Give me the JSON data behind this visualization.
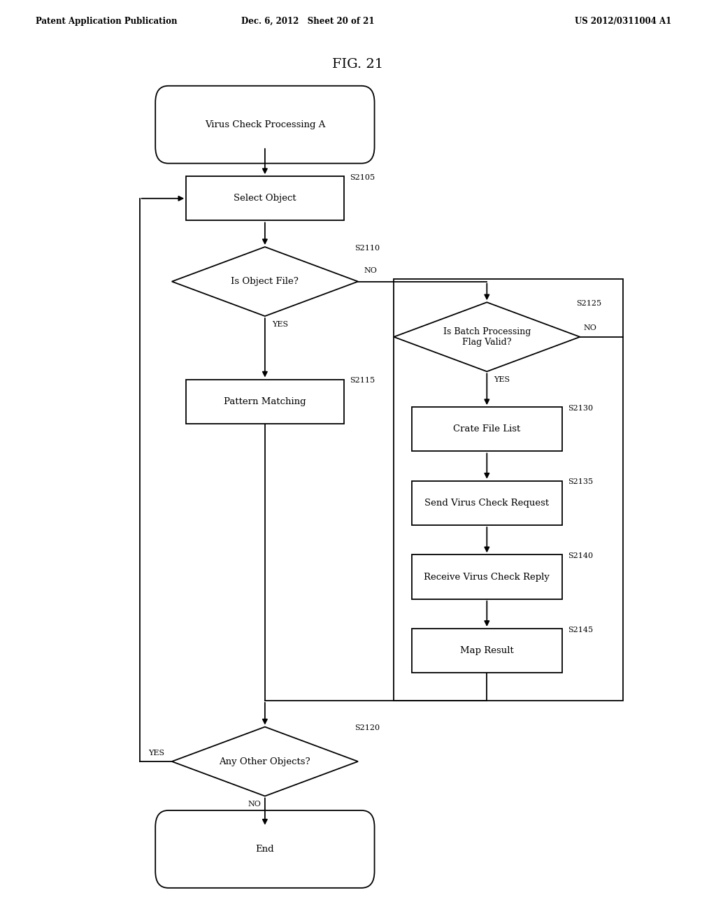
{
  "bg_color": "#ffffff",
  "title": "FIG. 21",
  "header_left": "Patent Application Publication",
  "header_mid": "Dec. 6, 2012   Sheet 20 of 21",
  "header_right": "US 2012/0311004 A1",
  "font_size_node": 9.5,
  "font_size_step": 8,
  "font_size_title": 14,
  "font_size_header": 8.5
}
